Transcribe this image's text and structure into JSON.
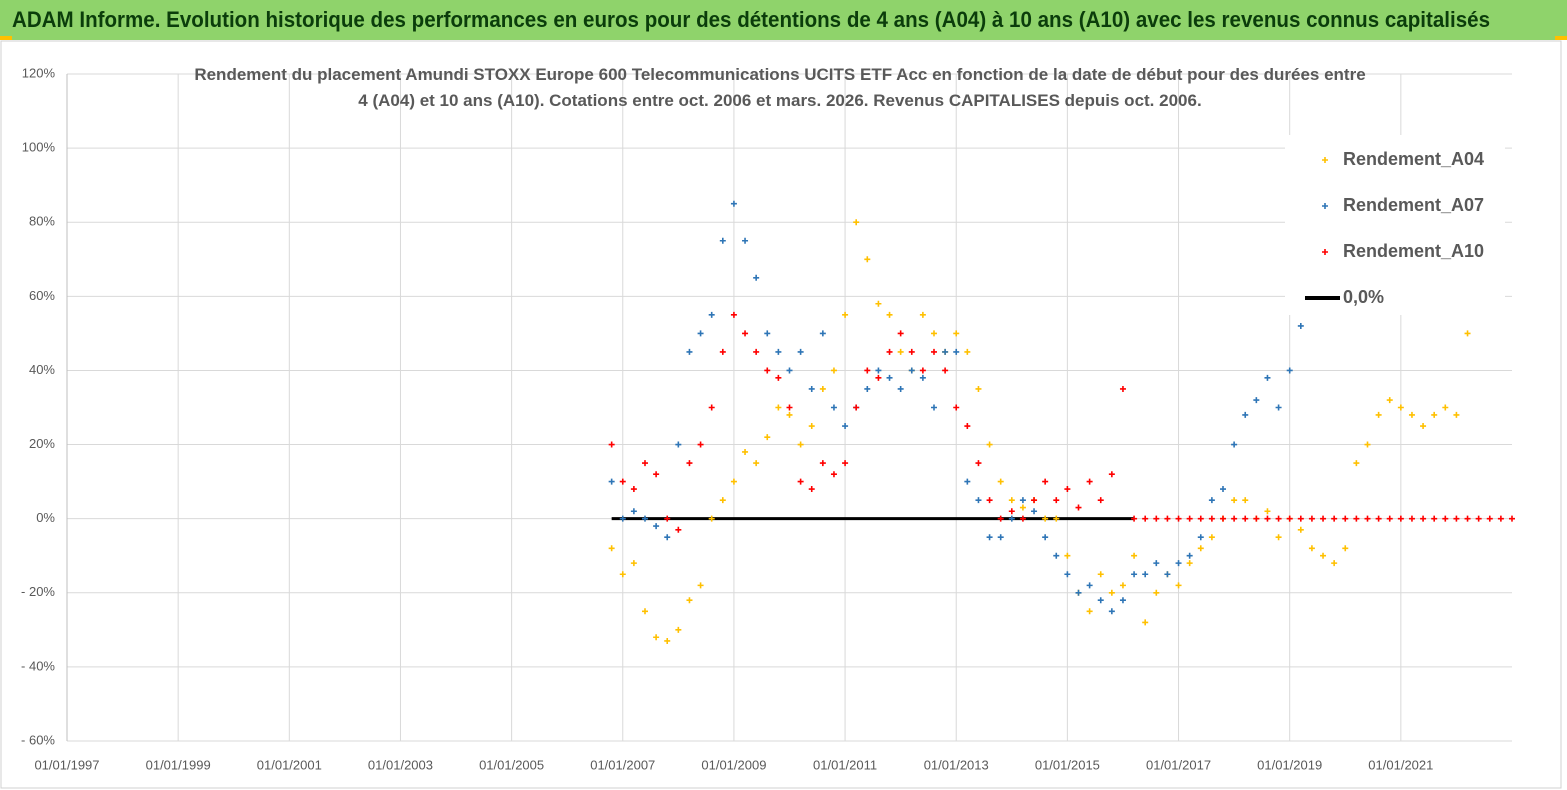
{
  "header": {
    "title": "ADAM Informe. Evolution historique des performances en euros pour des détentions de 4 ans (A04) à 10 ans (A10) avec les revenus connus capitalisés"
  },
  "chart_data": {
    "type": "scatter",
    "title": "Rendement du placement Amundi STOXX Europe 600 Telecommunications UCITS ETF Acc en fonction de la date de début pour des durées entre 4 (A04) et 10 ans (A10). Cotations entre oct. 2006 et mars. 2026. Revenus CAPITALISES depuis oct. 2006.",
    "xlim": [
      1997,
      2023
    ],
    "xticks": [
      {
        "value": 1997,
        "label": "01/01/1997"
      },
      {
        "value": 1999,
        "label": "01/01/1999"
      },
      {
        "value": 2001,
        "label": "01/01/2001"
      },
      {
        "value": 2003,
        "label": "01/01/2003"
      },
      {
        "value": 2005,
        "label": "01/01/2005"
      },
      {
        "value": 2007,
        "label": "01/01/2007"
      },
      {
        "value": 2009,
        "label": "01/01/2009"
      },
      {
        "value": 2011,
        "label": "01/01/2011"
      },
      {
        "value": 2013,
        "label": "01/01/2013"
      },
      {
        "value": 2015,
        "label": "01/01/2015"
      },
      {
        "value": 2017,
        "label": "01/01/2017"
      },
      {
        "value": 2019,
        "label": "01/01/2019"
      },
      {
        "value": 2021,
        "label": "01/01/2021"
      }
    ],
    "ylim": [
      -60,
      120
    ],
    "yticks": [
      {
        "value": -60,
        "label": "- 60%"
      },
      {
        "value": -40,
        "label": "- 40%"
      },
      {
        "value": -20,
        "label": "- 20%"
      },
      {
        "value": 0,
        "label": "0%"
      },
      {
        "value": 20,
        "label": "20%"
      },
      {
        "value": 40,
        "label": "40%"
      },
      {
        "value": 60,
        "label": "60%"
      },
      {
        "value": 80,
        "label": "80%"
      },
      {
        "value": 100,
        "label": "100%"
      },
      {
        "value": 120,
        "label": "120%"
      }
    ],
    "grid": true,
    "legend": "upper right",
    "series": [
      {
        "name": "Rendement_A04",
        "color": "#FFC000",
        "type": "scatter",
        "x": [
          2006.8,
          2007.0,
          2007.2,
          2007.4,
          2007.6,
          2007.8,
          2008.0,
          2008.2,
          2008.4,
          2008.6,
          2008.8,
          2009.0,
          2009.2,
          2009.4,
          2009.6,
          2009.8,
          2010.0,
          2010.2,
          2010.4,
          2010.6,
          2010.8,
          2011.0,
          2011.2,
          2011.4,
          2011.6,
          2011.8,
          2012.0,
          2012.2,
          2012.4,
          2012.6,
          2012.8,
          2013.0,
          2013.2,
          2013.4,
          2013.6,
          2013.8,
          2014.0,
          2014.2,
          2014.4,
          2014.6,
          2014.8,
          2015.0,
          2015.2,
          2015.4,
          2015.6,
          2015.8,
          2016.0,
          2016.2,
          2016.4,
          2016.6,
          2016.8,
          2017.0,
          2017.2,
          2017.4,
          2017.6,
          2017.8,
          2018.0,
          2018.2,
          2018.4,
          2018.6,
          2018.8,
          2019.0,
          2019.2,
          2019.4,
          2019.6,
          2019.8,
          2020.0,
          2020.2,
          2020.4,
          2020.6,
          2020.8,
          2021.0,
          2021.2,
          2021.4,
          2021.6,
          2021.8,
          2022.0,
          2022.2
        ],
        "values": [
          -8,
          -15,
          -12,
          -25,
          -32,
          -33,
          -30,
          -22,
          -18,
          0,
          5,
          10,
          18,
          15,
          22,
          30,
          28,
          20,
          25,
          35,
          40,
          55,
          80,
          70,
          58,
          55,
          45,
          40,
          55,
          50,
          45,
          50,
          45,
          35,
          20,
          10,
          5,
          3,
          5,
          0,
          0,
          -10,
          -20,
          -25,
          -15,
          -20,
          -18,
          -10,
          -28,
          -20,
          -15,
          -18,
          -12,
          -8,
          -5,
          0,
          5,
          5,
          0,
          2,
          -5,
          0,
          -3,
          -8,
          -10,
          -12,
          -8,
          15,
          20,
          28,
          32,
          30,
          28,
          25,
          28,
          30,
          28,
          50
        ]
      },
      {
        "name": "Rendement_A07",
        "color": "#2E75B6",
        "type": "scatter",
        "x": [
          2006.8,
          2007.0,
          2007.2,
          2007.4,
          2007.6,
          2007.8,
          2008.0,
          2008.2,
          2008.4,
          2008.6,
          2008.8,
          2009.0,
          2009.2,
          2009.4,
          2009.6,
          2009.8,
          2010.0,
          2010.2,
          2010.4,
          2010.6,
          2010.8,
          2011.0,
          2011.2,
          2011.4,
          2011.6,
          2011.8,
          2012.0,
          2012.2,
          2012.4,
          2012.6,
          2012.8,
          2013.0,
          2013.2,
          2013.4,
          2013.6,
          2013.8,
          2014.0,
          2014.2,
          2014.4,
          2014.6,
          2014.8,
          2015.0,
          2015.2,
          2015.4,
          2015.6,
          2015.8,
          2016.0,
          2016.2,
          2016.4,
          2016.6,
          2016.8,
          2017.0,
          2017.2,
          2017.4,
          2017.6,
          2017.8,
          2018.0,
          2018.2,
          2018.4,
          2018.6,
          2018.8,
          2019.0,
          2019.2
        ],
        "values": [
          10,
          0,
          2,
          0,
          -2,
          -5,
          20,
          45,
          50,
          55,
          75,
          85,
          75,
          65,
          50,
          45,
          40,
          45,
          35,
          50,
          30,
          25,
          30,
          35,
          40,
          38,
          35,
          40,
          38,
          30,
          45,
          45,
          10,
          5,
          -5,
          -5,
          0,
          5,
          2,
          -5,
          -10,
          -15,
          -20,
          -18,
          -22,
          -25,
          -22,
          -15,
          -15,
          -12,
          -15,
          -12,
          -10,
          -5,
          5,
          8,
          20,
          28,
          32,
          38,
          30,
          40,
          52
        ]
      },
      {
        "name": "Rendement_A10",
        "color": "#FF0000",
        "type": "scatter",
        "x": [
          2006.8,
          2007.0,
          2007.2,
          2007.4,
          2007.6,
          2007.8,
          2008.0,
          2008.2,
          2008.4,
          2008.6,
          2008.8,
          2009.0,
          2009.2,
          2009.4,
          2009.6,
          2009.8,
          2010.0,
          2010.2,
          2010.4,
          2010.6,
          2010.8,
          2011.0,
          2011.2,
          2011.4,
          2011.6,
          2011.8,
          2012.0,
          2012.2,
          2012.4,
          2012.6,
          2012.8,
          2013.0,
          2013.2,
          2013.4,
          2013.6,
          2013.8,
          2014.0,
          2014.2,
          2014.4,
          2014.6,
          2014.8,
          2015.0,
          2015.2,
          2015.4,
          2015.6,
          2015.8,
          2016.0,
          2016.2,
          2016.4,
          2016.6,
          2016.8,
          2017.0,
          2017.2,
          2017.4,
          2017.6,
          2017.8,
          2018.0,
          2018.2,
          2018.4,
          2018.6,
          2018.8,
          2019.0,
          2019.2,
          2019.4,
          2019.6,
          2019.8,
          2020.0,
          2020.2,
          2020.4,
          2020.6,
          2020.8,
          2021.0,
          2021.2,
          2021.4,
          2021.6,
          2021.8,
          2022.0,
          2022.2,
          2022.4,
          2022.6,
          2022.8,
          2023.0
        ],
        "values": [
          20,
          10,
          8,
          15,
          12,
          0,
          -3,
          15,
          20,
          30,
          45,
          55,
          50,
          45,
          40,
          38,
          30,
          10,
          8,
          15,
          12,
          15,
          30,
          40,
          38,
          45,
          50,
          45,
          40,
          45,
          40,
          30,
          25,
          15,
          5,
          0,
          2,
          0,
          5,
          10,
          5,
          8,
          3,
          10,
          5,
          12,
          35,
          0,
          0,
          0,
          0,
          0,
          0,
          0,
          0,
          0,
          0,
          0,
          0,
          0,
          0,
          0,
          0,
          0,
          0,
          0,
          0,
          0,
          0,
          0,
          0,
          0,
          0,
          0,
          0,
          0,
          0,
          0,
          0,
          0,
          0,
          0
        ]
      },
      {
        "name": "0,0%",
        "color": "#000000",
        "type": "line",
        "x": [
          2006.8,
          2016.2
        ],
        "values": [
          0,
          0
        ]
      }
    ]
  }
}
